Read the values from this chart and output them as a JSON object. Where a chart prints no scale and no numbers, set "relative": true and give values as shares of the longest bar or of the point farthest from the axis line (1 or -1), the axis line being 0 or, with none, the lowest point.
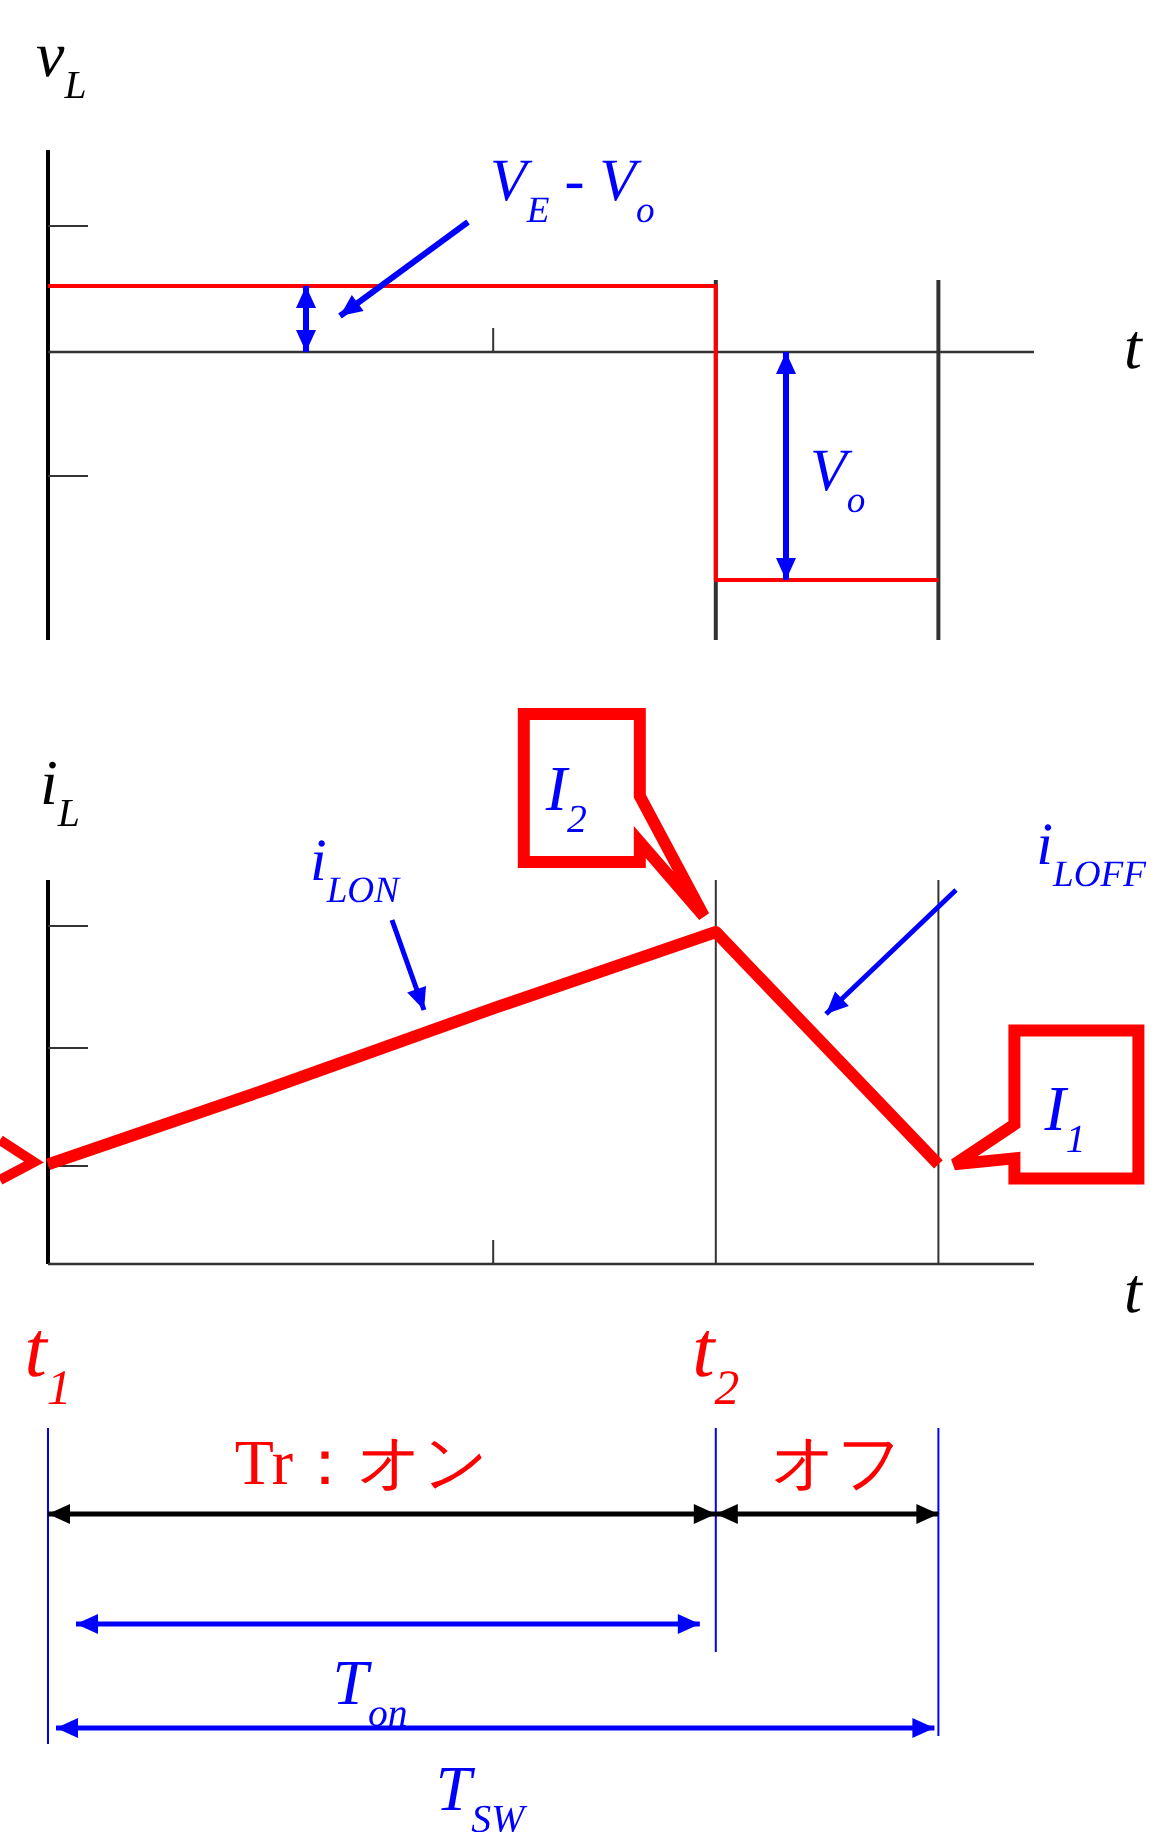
{
  "chart_data": [
    {
      "type": "step",
      "relative": true,
      "ylabel": "v$_{L}$",
      "xlabel": "t",
      "categories": [
        null,
        null,
        null,
        null,
        null
      ],
      "series": [
        {
          "color": "#ff0000",
          "values": [
            0.29,
            0.29,
            0.29,
            -1,
            -1
          ]
        }
      ],
      "annotations": [
        "V$_{E}$ - V$_{o}$",
        "V$_{o}$"
      ]
    },
    {
      "type": "line",
      "relative": true,
      "ylabel": "i$_{L}$",
      "xlabel": "t",
      "categories": [
        "t$_{1}$",
        null,
        null,
        "t$_{2}$",
        null
      ],
      "series": [
        {
          "color": "#ff0000",
          "values": [
            0.3,
            0.53,
            0.77,
            1,
            0.3
          ]
        }
      ],
      "annotations": [
        {
          "text": "I$_{2}$",
          "x": "t$_{2}$",
          "y": 1
        },
        "I$_{1}$",
        "i$_{LON}$",
        "i$_{LOFF}$",
        "Tr：オン",
        "オフ",
        "T$_{on}$",
        "T$_{SW}$"
      ]
    }
  ]
}
